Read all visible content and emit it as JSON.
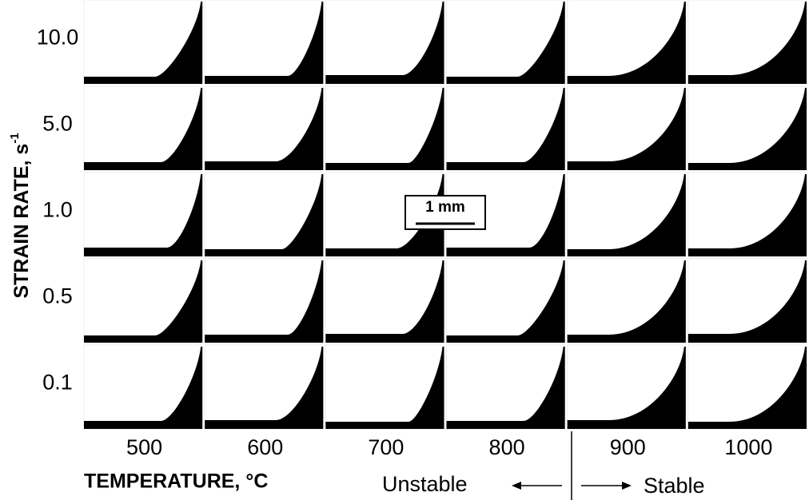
{
  "y_axis_title": "STRAIN RATE, s",
  "y_axis_title_sup": "-1",
  "x_axis_title": "TEMPERATURE, °C",
  "rows": [
    "10.0",
    "5.0",
    "1.0",
    "0.5",
    "0.1"
  ],
  "columns": [
    "500",
    "600",
    "700",
    "800",
    "900",
    "1000"
  ],
  "scale_bar": "1 mm",
  "annotations": {
    "left": "Unstable",
    "right": "Stable"
  }
}
